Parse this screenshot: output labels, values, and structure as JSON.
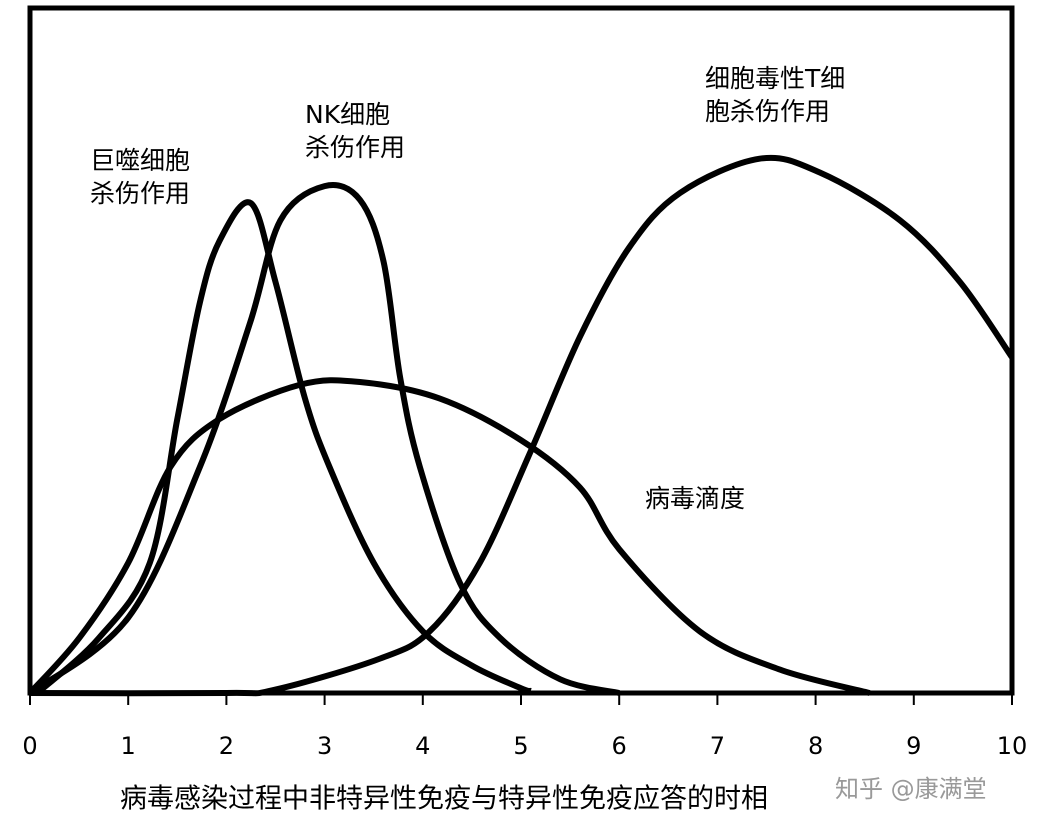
{
  "chart_data": {
    "type": "line",
    "xlabel": "病毒感染过程中非特异性免疫与特异性免疫应答的时相",
    "watermark": "知乎 @康满堂",
    "xlim": [
      0,
      10
    ],
    "xticks": [
      0,
      1,
      2,
      3,
      4,
      5,
      6,
      7,
      8,
      9,
      10
    ],
    "ylim": [
      0,
      100
    ],
    "series": [
      {
        "label": [
          "巨噬细胞",
          "杀伤作用"
        ],
        "color": "#000000",
        "x": [
          0.1,
          0.7,
          1.22,
          1.5,
          1.73,
          1.93,
          2.25,
          2.5,
          2.8,
          3.05,
          3.5,
          4,
          4.5,
          5,
          5.1
        ],
        "values": [
          0.3,
          8,
          19,
          40,
          57,
          66,
          71.5,
          60,
          43,
          33,
          19,
          9,
          4,
          0.7,
          0.3
        ]
      },
      {
        "label": [
          "NK细胞",
          "杀伤作用"
        ],
        "color": "#000000",
        "x": [
          0,
          1,
          1.73,
          2.24,
          2.55,
          3,
          3.36,
          3.6,
          3.77,
          3.97,
          4.38,
          4.79,
          5.4,
          6
        ],
        "values": [
          0,
          11,
          33,
          54,
          69,
          74,
          72,
          63,
          46,
          33,
          16,
          8,
          2,
          0
        ]
      },
      {
        "label": [
          "病毒滴度"
        ],
        "color": "#000000",
        "x": [
          0,
          0.5,
          1,
          1.43,
          1.93,
          2.75,
          3.36,
          4.17,
          4.99,
          5.6,
          6,
          6.82,
          7.64,
          8.55
        ],
        "values": [
          0,
          8,
          19,
          33,
          40,
          45,
          45.4,
          43,
          37,
          30,
          21,
          9,
          3.4,
          0
        ]
      },
      {
        "label": [
          "细胞毒性T细",
          "胞杀伤作用"
        ],
        "color": "#000000",
        "x": [
          0,
          2,
          2.5,
          3.56,
          4.07,
          4.58,
          5.09,
          5.6,
          6.1,
          6.62,
          7.43,
          8.04,
          8.86,
          9.47,
          10
        ],
        "values": [
          0,
          0,
          0.5,
          5,
          9,
          19,
          35,
          52,
          65,
          73,
          78,
          76,
          69,
          60,
          49
        ]
      }
    ]
  }
}
